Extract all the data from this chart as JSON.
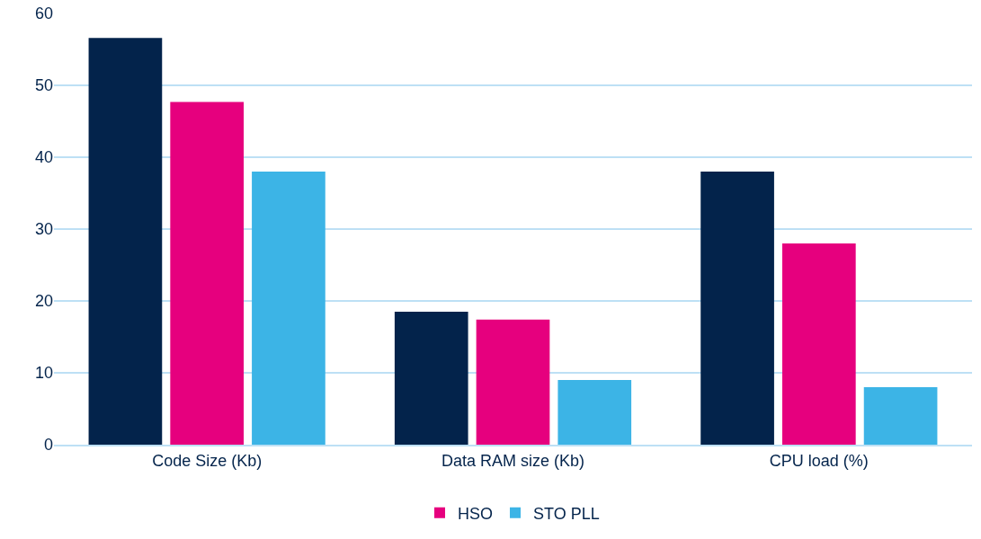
{
  "chart_data": {
    "type": "bar",
    "categories": [
      "Code Size (Kb)",
      "Data RAM size (Kb)",
      "CPU load (%)"
    ],
    "series": [
      {
        "color": "#03234b",
        "values": [
          56.6,
          18.5,
          38
        ]
      },
      {
        "name": "HSO",
        "color": "#e6007e",
        "values": [
          47.7,
          17.4,
          28
        ]
      },
      {
        "name": "STO PLL",
        "color": "#3cb4e6",
        "values": [
          38,
          9,
          8
        ]
      }
    ],
    "ylim": [
      0,
      60
    ],
    "yticks": [
      0,
      10,
      20,
      30,
      40,
      50,
      60
    ],
    "grid": "y",
    "legend": "bottom"
  }
}
